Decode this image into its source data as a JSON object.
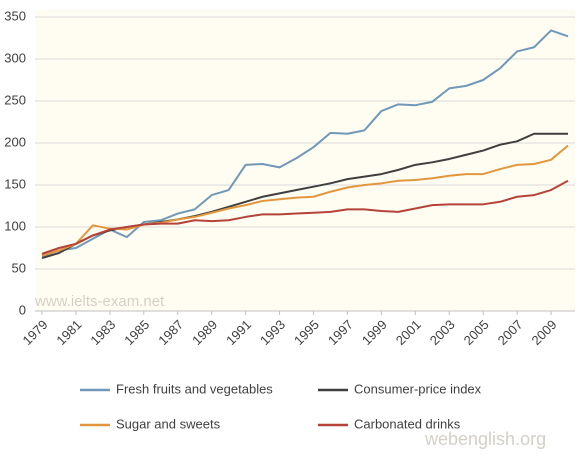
{
  "chart_data": {
    "type": "line",
    "x": [
      1979,
      1980,
      1981,
      1982,
      1983,
      1984,
      1985,
      1986,
      1987,
      1988,
      1989,
      1990,
      1991,
      1992,
      1993,
      1994,
      1995,
      1996,
      1997,
      1998,
      1999,
      2000,
      2001,
      2002,
      2003,
      2004,
      2005,
      2006,
      2007,
      2008,
      2009,
      2010
    ],
    "xlim": [
      1979,
      2010
    ],
    "xticks": [
      1979,
      1981,
      1983,
      1985,
      1987,
      1989,
      1991,
      1993,
      1995,
      1997,
      1999,
      2001,
      2003,
      2005,
      2007,
      2009
    ],
    "ylim": [
      0,
      350
    ],
    "yticks": [
      0,
      50,
      100,
      150,
      200,
      250,
      300,
      350
    ],
    "grid": true,
    "legend": "bottom",
    "series": [
      {
        "name": "Fresh fruits and vegetables",
        "color": "#7198b9",
        "values": [
          65,
          72,
          75,
          86,
          97,
          88,
          106,
          108,
          116,
          121,
          138,
          144,
          174,
          175,
          171,
          182,
          195,
          212,
          211,
          215,
          238,
          246,
          245,
          249,
          265,
          268,
          275,
          289,
          309,
          314,
          334,
          327
        ]
      },
      {
        "name": "Consumer-price index",
        "color": "#3f3f3f",
        "values": [
          63,
          69,
          80,
          90,
          96,
          100,
          103,
          106,
          109,
          113,
          118,
          124,
          130,
          136,
          140,
          144,
          148,
          152,
          157,
          160,
          163,
          168,
          174,
          177,
          181,
          186,
          191,
          198,
          202,
          211,
          211,
          211
        ]
      },
      {
        "name": "Sugar and sweets",
        "color": "#e2973f",
        "values": [
          66,
          72,
          80,
          102,
          98,
          97,
          103,
          105,
          109,
          112,
          117,
          122,
          126,
          131,
          133,
          135,
          136,
          142,
          147,
          150,
          152,
          155,
          156,
          158,
          161,
          163,
          163,
          169,
          174,
          175,
          180,
          197
        ]
      },
      {
        "name": "Carbonated drinks",
        "color": "#b5433a",
        "values": [
          68,
          75,
          80,
          90,
          97,
          100,
          103,
          104,
          104,
          108,
          107,
          108,
          112,
          115,
          115,
          116,
          117,
          118,
          121,
          121,
          119,
          118,
          122,
          126,
          127,
          127,
          127,
          130,
          136,
          138,
          144,
          155
        ]
      }
    ],
    "watermarks": [
      "www.ielts-exam.net",
      "webenglish.org"
    ]
  }
}
